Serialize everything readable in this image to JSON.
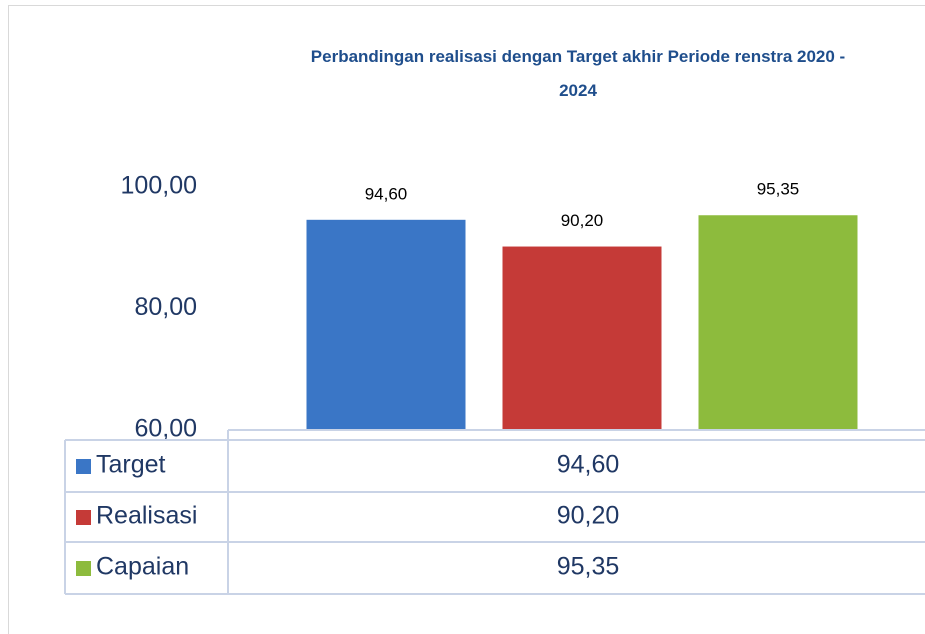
{
  "chart_data": {
    "type": "bar",
    "title": "Perbandingan realisasi dengan Target akhir Periode renstra 2020 - 2024",
    "categories": [
      null
    ],
    "series": [
      {
        "name": "Target",
        "color": "#3a76c6",
        "values": [
          94.6
        ],
        "value_labels": [
          "94,60"
        ]
      },
      {
        "name": "Realisasi",
        "color": "#c53a37",
        "values": [
          90.2
        ],
        "value_labels": [
          "90,20"
        ]
      },
      {
        "name": "Capaian",
        "color": "#8dbb3d",
        "values": [
          95.35
        ],
        "value_labels": [
          "95,35"
        ]
      }
    ],
    "ylim": [
      60,
      100
    ],
    "yticks": [
      {
        "value": 60,
        "label": "60,00"
      },
      {
        "value": 80,
        "label": "80,00"
      },
      {
        "value": 100,
        "label": "100,00"
      }
    ],
    "grid": false,
    "data_table": true
  }
}
